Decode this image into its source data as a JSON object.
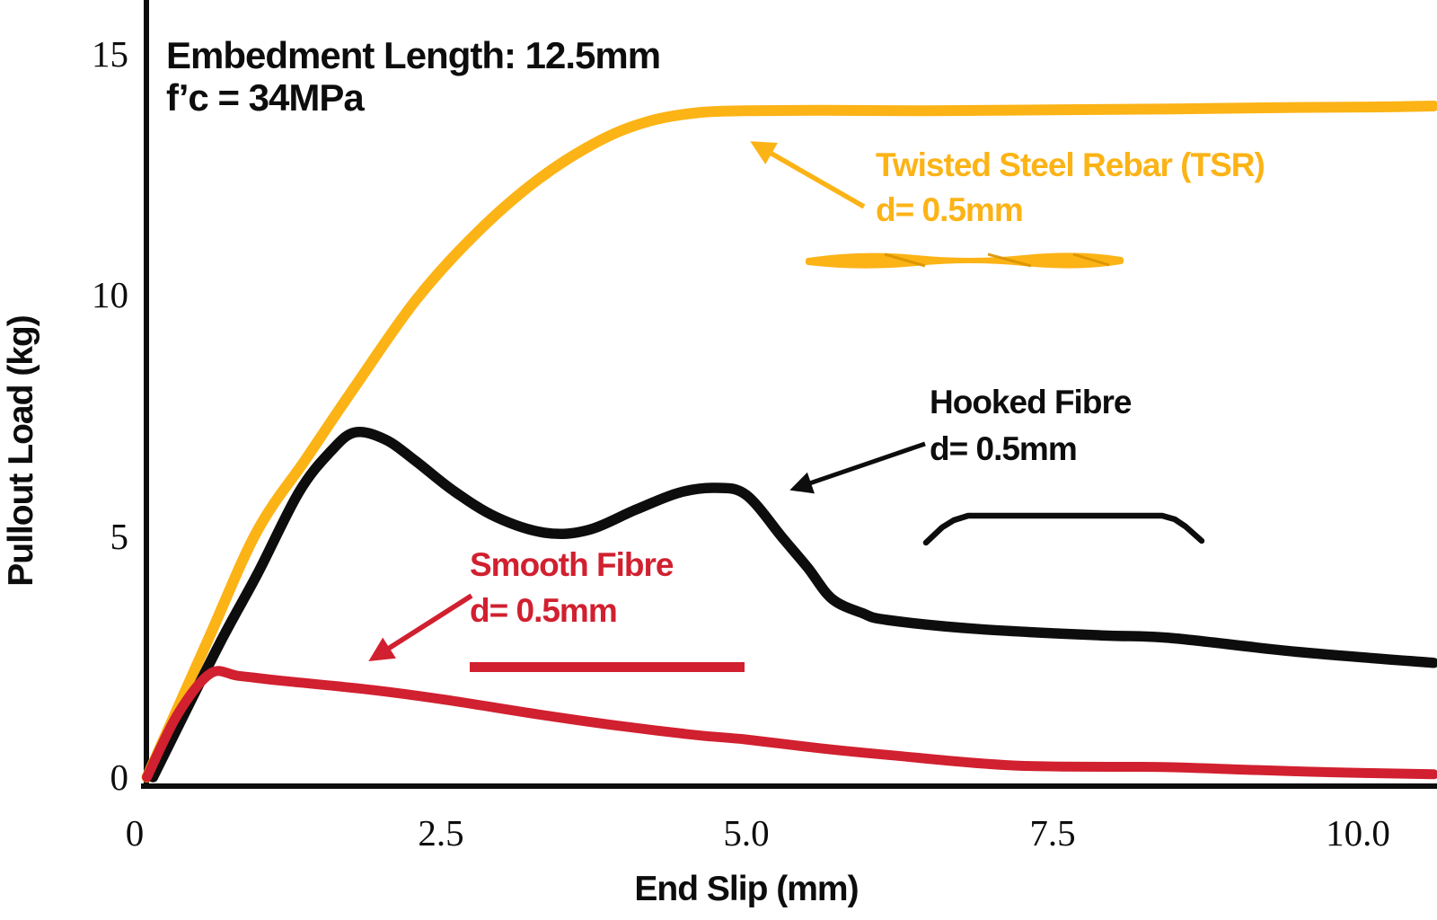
{
  "background": "#ffffff",
  "chart_data": {
    "type": "line",
    "title": "",
    "xlabel": "End Slip (mm)",
    "ylabel": "Pullout Load (kg)",
    "xlim": [
      0,
      10.65
    ],
    "ylim": [
      0,
      15.3
    ],
    "grid": false,
    "legend_position": "inline-annotations",
    "x_ticks": [
      {
        "value": 0,
        "label": "0"
      },
      {
        "value": 2.5,
        "label": "2.5"
      },
      {
        "value": 5,
        "label": "5.0"
      },
      {
        "value": 7.5,
        "label": "7.5"
      },
      {
        "value": 10,
        "label": "10.0"
      }
    ],
    "y_ticks": [
      {
        "value": 0,
        "label": "0"
      },
      {
        "value": 5,
        "label": "5"
      },
      {
        "value": 10,
        "label": "10"
      },
      {
        "value": 15,
        "label": "15"
      }
    ],
    "annotation_title": {
      "line1": "Embedment Length: 12.5mm",
      "line2": "f’c = 34MPa"
    },
    "series": [
      {
        "name": "Twisted Steel Rebar (TSR)",
        "label_line1": "Twisted Steel Rebar (TSR)",
        "label_line2": "d= 0.5mm",
        "color": "#FCB316",
        "icon": "twisted-rod",
        "points": [
          [
            0.1,
            0
          ],
          [
            0.6,
            2.85
          ],
          [
            1.0,
            5.1
          ],
          [
            1.4,
            6.6
          ],
          [
            1.8,
            8.1
          ],
          [
            2.3,
            9.9
          ],
          [
            2.8,
            11.3
          ],
          [
            3.3,
            12.4
          ],
          [
            3.8,
            13.2
          ],
          [
            4.2,
            13.6
          ],
          [
            4.6,
            13.78
          ],
          [
            5.0,
            13.82
          ],
          [
            5.6,
            13.83
          ],
          [
            6.5,
            13.82
          ],
          [
            7.5,
            13.84
          ],
          [
            8.5,
            13.86
          ],
          [
            9.5,
            13.89
          ],
          [
            10.2,
            13.9
          ],
          [
            10.62,
            13.92
          ]
        ]
      },
      {
        "name": "Hooked Fibre",
        "label_line1": "Hooked Fibre",
        "label_line2": "d= 0.5mm",
        "color": "#0d0d0d",
        "icon": "hooked-fibre",
        "points": [
          [
            0.15,
            0
          ],
          [
            0.68,
            2.7
          ],
          [
            1.0,
            4.2
          ],
          [
            1.34,
            5.9
          ],
          [
            1.6,
            6.75
          ],
          [
            1.8,
            7.15
          ],
          [
            2.05,
            7.0
          ],
          [
            2.3,
            6.55
          ],
          [
            2.6,
            5.95
          ],
          [
            2.95,
            5.4
          ],
          [
            3.35,
            5.07
          ],
          [
            3.7,
            5.12
          ],
          [
            4.1,
            5.55
          ],
          [
            4.45,
            5.9
          ],
          [
            4.75,
            6.0
          ],
          [
            5.0,
            5.85
          ],
          [
            5.3,
            4.95
          ],
          [
            5.5,
            4.35
          ],
          [
            5.7,
            3.7
          ],
          [
            5.95,
            3.4
          ],
          [
            6.15,
            3.26
          ],
          [
            6.9,
            3.07
          ],
          [
            7.9,
            2.94
          ],
          [
            8.45,
            2.89
          ],
          [
            9.5,
            2.6
          ],
          [
            10.62,
            2.37
          ]
        ]
      },
      {
        "name": "Smooth Fibre",
        "label_line1": "Smooth Fibre",
        "label_line2": "d= 0.5mm",
        "color": "#D1202F",
        "icon": "straight-rod",
        "points": [
          [
            0.1,
            0
          ],
          [
            0.35,
            1.3
          ],
          [
            0.62,
            2.15
          ],
          [
            0.85,
            2.1
          ],
          [
            1.2,
            2.0
          ],
          [
            1.9,
            1.82
          ],
          [
            2.5,
            1.62
          ],
          [
            3.3,
            1.3
          ],
          [
            4.0,
            1.05
          ],
          [
            4.6,
            0.87
          ],
          [
            5.0,
            0.78
          ],
          [
            5.6,
            0.6
          ],
          [
            6.2,
            0.45
          ],
          [
            7.2,
            0.24
          ],
          [
            8.4,
            0.21
          ],
          [
            9.0,
            0.16
          ],
          [
            9.8,
            0.1
          ],
          [
            10.62,
            0.06
          ]
        ]
      }
    ]
  }
}
